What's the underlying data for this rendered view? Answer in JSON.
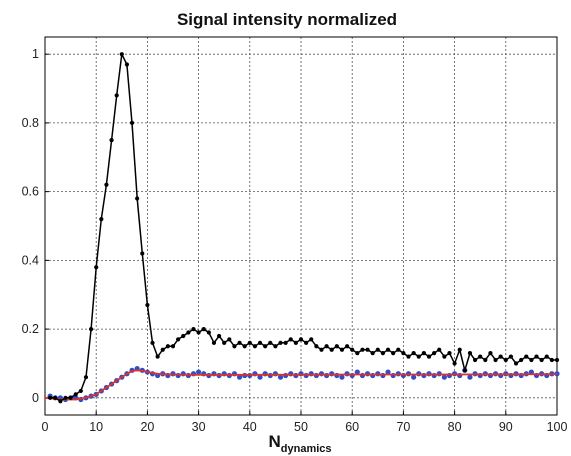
{
  "chart_data": {
    "type": "line",
    "title": "Signal intensity normalized",
    "xlabel": {
      "main": "N",
      "sub": "dynamics"
    },
    "ylabel": "",
    "xlim": [
      0,
      100
    ],
    "ylim": [
      -0.05,
      1.05
    ],
    "grid": true,
    "x_ticks": [
      "0",
      "10",
      "20",
      "30",
      "40",
      "50",
      "60",
      "70",
      "80",
      "90",
      "100"
    ],
    "y_ticks": [
      "0",
      "0.2",
      "0.4",
      "0.6",
      "0.8",
      "1"
    ],
    "x_tick_values": [
      0,
      10,
      20,
      30,
      40,
      50,
      60,
      70,
      80,
      90,
      100
    ],
    "y_tick_values": [
      0,
      0.2,
      0.4,
      0.6,
      0.8,
      1
    ],
    "series": [
      {
        "style": "line-markers",
        "color": "#000000",
        "x": [
          1,
          2,
          3,
          4,
          5,
          6,
          7,
          8,
          9,
          10,
          11,
          12,
          13,
          14,
          15,
          16,
          17,
          18,
          19,
          20,
          21,
          22,
          23,
          24,
          25,
          26,
          27,
          28,
          29,
          30,
          31,
          32,
          33,
          34,
          35,
          36,
          37,
          38,
          39,
          40,
          41,
          42,
          43,
          44,
          45,
          46,
          47,
          48,
          49,
          50,
          51,
          52,
          53,
          54,
          55,
          56,
          57,
          58,
          59,
          60,
          61,
          62,
          63,
          64,
          65,
          66,
          67,
          68,
          69,
          70,
          71,
          72,
          73,
          74,
          75,
          76,
          77,
          78,
          79,
          80,
          81,
          82,
          83,
          84,
          85,
          86,
          87,
          88,
          89,
          90,
          91,
          92,
          93,
          94,
          95,
          96,
          97,
          98,
          99,
          100
        ],
        "y": [
          0.0,
          0.0,
          -0.01,
          0.0,
          0.0,
          0.01,
          0.02,
          0.06,
          0.2,
          0.38,
          0.52,
          0.62,
          0.75,
          0.88,
          1.0,
          0.97,
          0.8,
          0.58,
          0.42,
          0.27,
          0.16,
          0.12,
          0.14,
          0.15,
          0.15,
          0.17,
          0.18,
          0.19,
          0.2,
          0.19,
          0.2,
          0.19,
          0.16,
          0.18,
          0.16,
          0.17,
          0.15,
          0.16,
          0.15,
          0.16,
          0.15,
          0.16,
          0.15,
          0.16,
          0.15,
          0.16,
          0.16,
          0.17,
          0.16,
          0.17,
          0.16,
          0.17,
          0.15,
          0.14,
          0.15,
          0.14,
          0.15,
          0.14,
          0.15,
          0.14,
          0.13,
          0.14,
          0.14,
          0.13,
          0.14,
          0.13,
          0.14,
          0.13,
          0.14,
          0.13,
          0.12,
          0.13,
          0.12,
          0.13,
          0.12,
          0.13,
          0.14,
          0.12,
          0.13,
          0.1,
          0.14,
          0.08,
          0.13,
          0.11,
          0.12,
          0.11,
          0.13,
          0.11,
          0.12,
          0.11,
          0.12,
          0.1,
          0.11,
          0.12,
          0.11,
          0.12,
          0.11,
          0.12,
          0.11,
          0.11
        ]
      },
      {
        "style": "markers",
        "color": "#2a4fc8",
        "x": [
          1,
          2,
          3,
          4,
          5,
          6,
          7,
          8,
          9,
          10,
          11,
          12,
          13,
          14,
          15,
          16,
          17,
          18,
          19,
          20,
          21,
          22,
          23,
          24,
          25,
          26,
          27,
          28,
          29,
          30,
          31,
          32,
          33,
          34,
          35,
          36,
          37,
          38,
          39,
          40,
          41,
          42,
          43,
          44,
          45,
          46,
          47,
          48,
          49,
          50,
          51,
          52,
          53,
          54,
          55,
          56,
          57,
          58,
          59,
          60,
          61,
          62,
          63,
          64,
          65,
          66,
          67,
          68,
          69,
          70,
          71,
          72,
          73,
          74,
          75,
          76,
          77,
          78,
          79,
          80,
          81,
          82,
          83,
          84,
          85,
          86,
          87,
          88,
          89,
          90,
          91,
          92,
          93,
          94,
          95,
          96,
          97,
          98,
          99,
          100
        ],
        "y": [
          0.005,
          0.0,
          0.0,
          -0.005,
          0.0,
          0.0,
          -0.005,
          0.0,
          0.005,
          0.01,
          0.02,
          0.03,
          0.04,
          0.05,
          0.06,
          0.07,
          0.08,
          0.085,
          0.08,
          0.075,
          0.07,
          0.065,
          0.07,
          0.065,
          0.07,
          0.065,
          0.07,
          0.065,
          0.07,
          0.075,
          0.07,
          0.065,
          0.07,
          0.065,
          0.07,
          0.065,
          0.07,
          0.06,
          0.065,
          0.065,
          0.07,
          0.06,
          0.07,
          0.065,
          0.07,
          0.06,
          0.065,
          0.07,
          0.065,
          0.07,
          0.065,
          0.07,
          0.065,
          0.07,
          0.065,
          0.07,
          0.065,
          0.06,
          0.07,
          0.065,
          0.075,
          0.065,
          0.07,
          0.065,
          0.07,
          0.065,
          0.075,
          0.065,
          0.07,
          0.065,
          0.07,
          0.06,
          0.07,
          0.065,
          0.07,
          0.065,
          0.07,
          0.06,
          0.065,
          0.07,
          0.065,
          0.08,
          0.06,
          0.07,
          0.065,
          0.07,
          0.065,
          0.07,
          0.065,
          0.07,
          0.065,
          0.07,
          0.065,
          0.07,
          0.075,
          0.065,
          0.07,
          0.065,
          0.07,
          0.07
        ]
      },
      {
        "style": "line",
        "color": "#e0302a",
        "x": [
          0,
          3,
          6,
          8,
          10,
          12,
          14,
          16,
          17,
          18,
          19,
          20,
          22,
          25,
          30,
          40,
          60,
          80,
          100
        ],
        "y": [
          0.0,
          -0.005,
          -0.005,
          0.0,
          0.01,
          0.03,
          0.05,
          0.07,
          0.078,
          0.08,
          0.078,
          0.075,
          0.07,
          0.068,
          0.067,
          0.067,
          0.068,
          0.068,
          0.069
        ]
      }
    ]
  }
}
